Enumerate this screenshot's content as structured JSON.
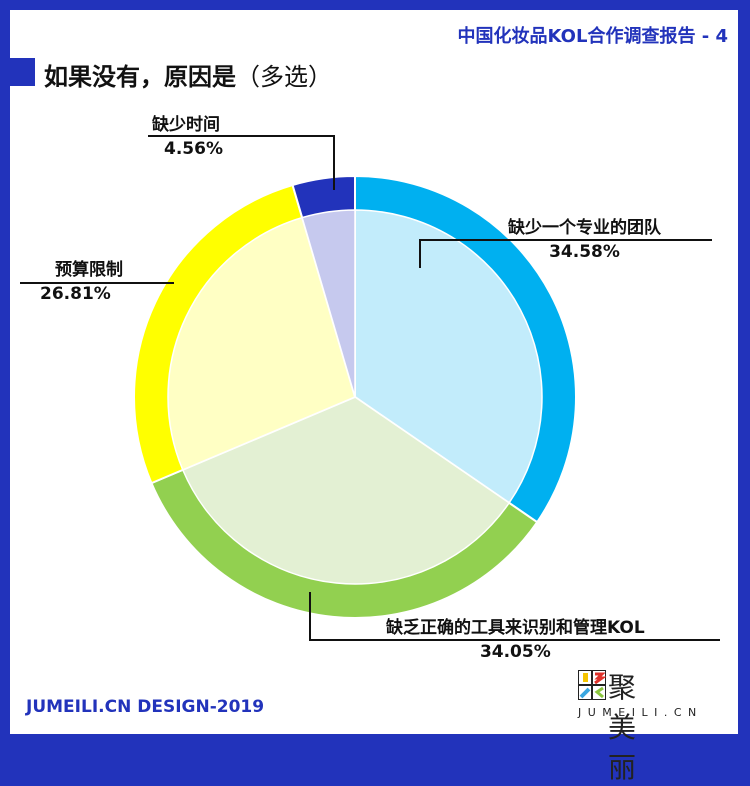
{
  "header": {
    "report_title": "中国化妆品KOL合作调查报告 - 4"
  },
  "title": {
    "main": "如果没有，原因是",
    "sub": "（多选）"
  },
  "chart_data": {
    "type": "pie",
    "title": "如果没有，原因是（多选）",
    "categories": [
      "缺少一个专业的团队",
      "缺乏正确的工具来识别和管理KOL",
      "预算限制",
      "缺少时间"
    ],
    "values": [
      34.58,
      34.05,
      26.81,
      4.56
    ],
    "labels": [
      "34.58%",
      "34.05%",
      "26.81%",
      "4.56%"
    ],
    "colors": [
      "#00b0f0",
      "#92d050",
      "#ffff00",
      "#2233bb"
    ],
    "inner_colors": [
      "#c2ecfb",
      "#e3f0d3",
      "#ffffc4",
      "#c6c9ee"
    ]
  },
  "footer": {
    "credit": "JUMEILI.CN DESIGN-2019"
  },
  "logo": {
    "cn": "聚美丽",
    "en": "JUMEILI.CN"
  }
}
